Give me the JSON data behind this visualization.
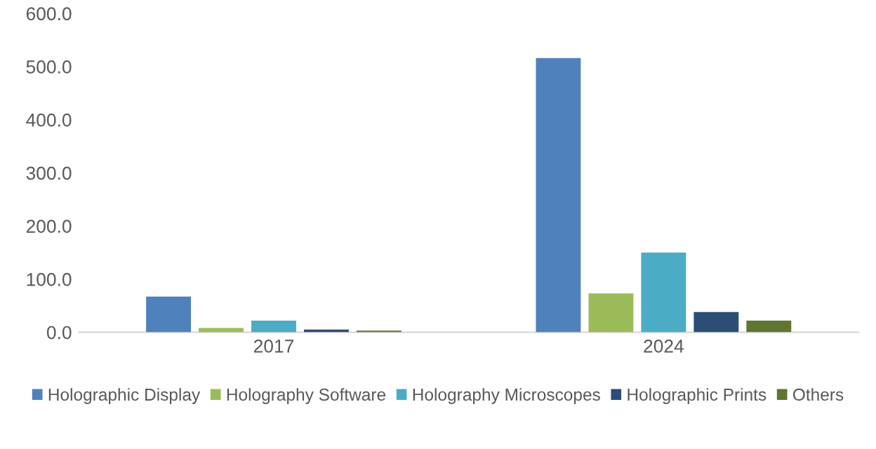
{
  "chart_data": {
    "type": "bar",
    "categories": [
      "2017",
      "2024"
    ],
    "series": [
      {
        "name": "Holographic Display",
        "color": "#4f81bd",
        "values": [
          67,
          516
        ]
      },
      {
        "name": "Holography Software",
        "color": "#9bbb59",
        "values": [
          8,
          73
        ]
      },
      {
        "name": "Holography Microscopes",
        "color": "#4bacc6",
        "values": [
          22,
          150
        ]
      },
      {
        "name": "Holographic Prints",
        "color": "#2c4d75",
        "values": [
          5,
          38
        ]
      },
      {
        "name": "Others",
        "color": "#5f7530",
        "values": [
          3,
          22
        ]
      }
    ],
    "ylim": [
      0,
      600
    ],
    "yticks": [
      {
        "value": 0,
        "label": "0.0"
      },
      {
        "value": 100,
        "label": "100.0"
      },
      {
        "value": 200,
        "label": "200.0"
      },
      {
        "value": 300,
        "label": "300.0"
      },
      {
        "value": 400,
        "label": "400.0"
      },
      {
        "value": 500,
        "label": "500.0"
      },
      {
        "value": 600,
        "label": "600.0"
      }
    ],
    "grid": false,
    "legend": "bottom"
  }
}
